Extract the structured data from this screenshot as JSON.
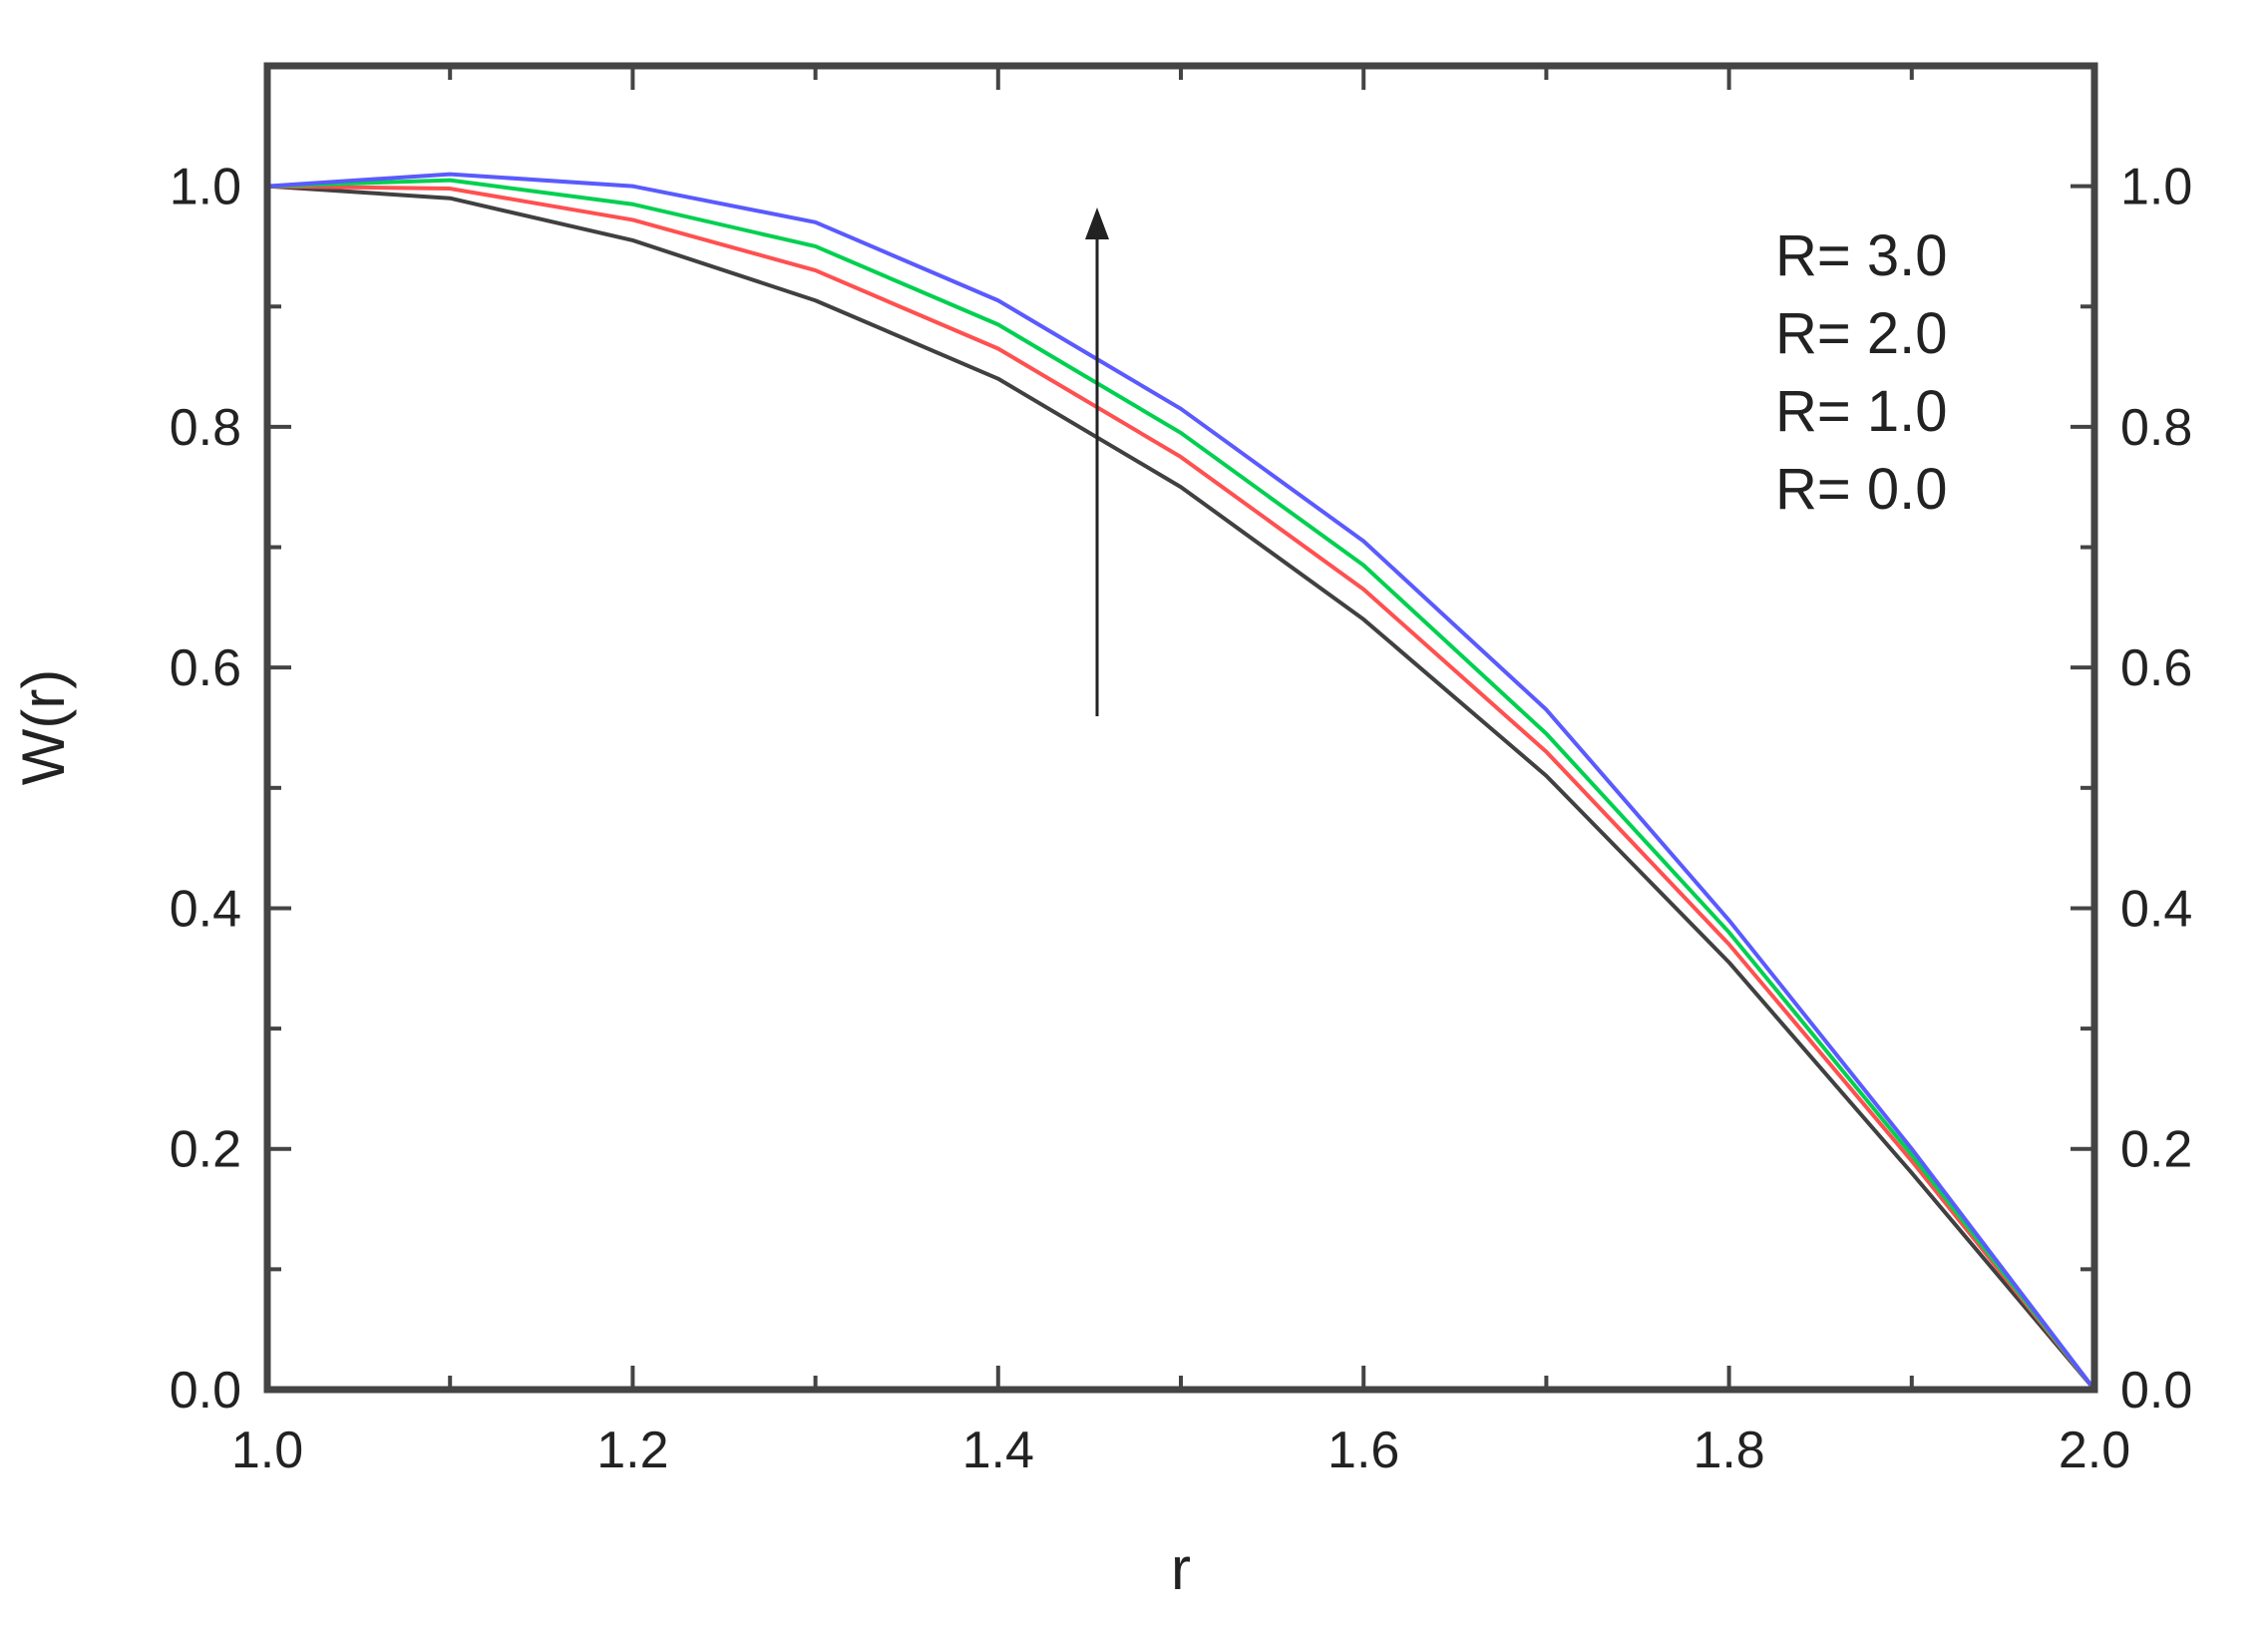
{
  "chart_data": {
    "type": "line",
    "title": "",
    "xlabel": "r",
    "ylabel": "W(r)",
    "xlim": [
      1.0,
      2.0
    ],
    "ylim": [
      0.0,
      1.1
    ],
    "xticks": [
      "1.0",
      "1.2",
      "1.4",
      "1.6",
      "1.8",
      "2.0"
    ],
    "yticks": [
      "0.0",
      "0.2",
      "0.4",
      "0.6",
      "0.8",
      "1.0"
    ],
    "grid": false,
    "mirror_right_axis": true,
    "legend_position": "top-right",
    "legend": [
      "R= 3.0",
      "R= 2.0",
      "R= 1.0",
      "R= 0.0"
    ],
    "annotation": "arrow pointing upward indicating increasing R",
    "x": [
      1.0,
      1.1,
      1.2,
      1.3,
      1.4,
      1.5,
      1.6,
      1.7,
      1.8,
      1.9,
      2.0
    ],
    "series": [
      {
        "name": "R= 3.0",
        "color": "#5a5aff",
        "values": [
          1.0,
          1.01,
          1.0,
          0.97,
          0.905,
          0.815,
          0.705,
          0.565,
          0.39,
          0.2,
          0.0
        ]
      },
      {
        "name": "R= 2.0",
        "color": "#00d050",
        "values": [
          1.0,
          1.005,
          0.985,
          0.95,
          0.885,
          0.795,
          0.685,
          0.545,
          0.38,
          0.195,
          0.0
        ]
      },
      {
        "name": "R= 1.0",
        "color": "#ff5050",
        "values": [
          1.0,
          0.998,
          0.972,
          0.93,
          0.865,
          0.775,
          0.665,
          0.53,
          0.37,
          0.19,
          0.0
        ]
      },
      {
        "name": "R= 0.0",
        "color": "#404040",
        "values": [
          1.0,
          0.99,
          0.955,
          0.905,
          0.84,
          0.75,
          0.64,
          0.51,
          0.355,
          0.18,
          0.0
        ]
      }
    ]
  }
}
